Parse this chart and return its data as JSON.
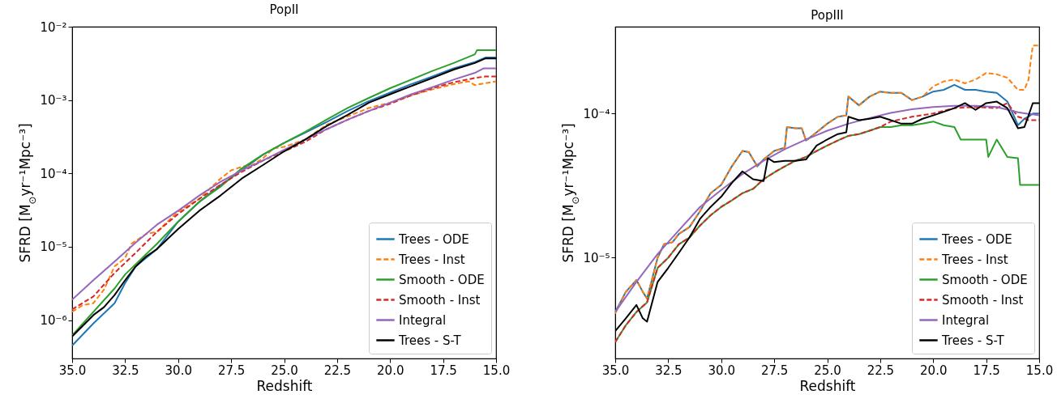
{
  "chart_data": [
    {
      "type": "line",
      "title": "PopII",
      "xlabel": "Redshift",
      "ylabel": "SFRD [M$_{⊙}$yr⁻¹Mpc⁻³]",
      "log": "y",
      "legend": "bottom right",
      "xlim": [
        35,
        15
      ],
      "xticks": [
        {
          "value": 35,
          "label": "35.0"
        },
        {
          "value": 32.5,
          "label": "32.5"
        },
        {
          "value": 30,
          "label": "30.0"
        },
        {
          "value": 27.5,
          "label": "27.5"
        },
        {
          "value": 25,
          "label": "25.0"
        },
        {
          "value": 22.5,
          "label": "22.5"
        },
        {
          "value": 20,
          "label": "20.0"
        },
        {
          "value": 17.5,
          "label": "17.5"
        },
        {
          "value": 15,
          "label": "15.0"
        }
      ],
      "ylim": [
        3e-07,
        0.01
      ],
      "yticks": [
        {
          "value": 1e-06,
          "label": "10⁻⁶"
        },
        {
          "value": 1e-05,
          "label": "10⁻⁵"
        },
        {
          "value": 0.0001,
          "label": "10⁻⁴"
        },
        {
          "value": 0.001,
          "label": "10⁻³"
        },
        {
          "value": 0.01,
          "label": "10⁻²"
        }
      ],
      "series": [
        {
          "name": "Trees - ODE",
          "color": "#1f77b4",
          "line_style": "solid",
          "x": [
            35,
            34,
            33,
            32.5,
            32,
            31,
            30,
            29,
            28,
            27,
            26,
            25,
            24,
            23,
            22,
            21,
            20,
            19,
            18,
            17,
            16,
            15.5,
            15
          ],
          "values": [
            4.5e-07,
            9e-07,
            1.7e-06,
            3.2e-06,
            5.4e-06,
            9.3e-06,
            2.2e-05,
            4.1e-05,
            6.9e-05,
            0.00011,
            0.00018,
            0.00026,
            0.00036,
            0.0005,
            0.00071,
            0.00097,
            0.00126,
            0.00165,
            0.0021,
            0.0027,
            0.0033,
            0.0038,
            0.0038
          ]
        },
        {
          "name": "Trees - Inst",
          "color": "#ff7f0e",
          "line_style": "dashed",
          "x": [
            35,
            34.5,
            34,
            33.5,
            33,
            32.5,
            32.2,
            31.5,
            31,
            30.5,
            30,
            29.5,
            29,
            28.5,
            28,
            27.5,
            27,
            26.5,
            26,
            25.5,
            25,
            24,
            23,
            22,
            21,
            20,
            19,
            18,
            17,
            16.3,
            16,
            15.5,
            15
          ],
          "values": [
            1.3e-06,
            1.6e-06,
            1.7e-06,
            2.6e-06,
            5.4e-06,
            7e-06,
            1.1e-05,
            1.5e-05,
            1.6e-05,
            2.2e-05,
            3e-05,
            3.7e-05,
            4.5e-05,
            6.2e-05,
            8.5e-05,
            0.00011,
            0.000123,
            0.00013,
            0.00016,
            0.00022,
            0.00023,
            0.00029,
            0.00046,
            0.0006,
            0.00078,
            0.00092,
            0.00116,
            0.0014,
            0.00165,
            0.0018,
            0.0016,
            0.0017,
            0.0018
          ]
        },
        {
          "name": "Smooth - ODE",
          "color": "#2ca02c",
          "line_style": "solid",
          "x": [
            35,
            33,
            32.5,
            31,
            30,
            29,
            28,
            27,
            26,
            25,
            24,
            23,
            22,
            21,
            20,
            19,
            18,
            17,
            16,
            15.9,
            15
          ],
          "values": [
            6.2e-07,
            2.7e-06,
            4.2e-06,
            1.1e-05,
            2.2e-05,
            4.1e-05,
            6.6e-05,
            0.000117,
            0.00018,
            0.00026,
            0.00037,
            0.00054,
            0.00078,
            0.00107,
            0.00145,
            0.0019,
            0.0025,
            0.0032,
            0.0042,
            0.0048,
            0.0048
          ]
        },
        {
          "name": "Smooth - Inst",
          "color": "#d62728",
          "line_style": "dashed",
          "x": [
            35,
            34,
            33,
            32,
            31,
            30,
            29,
            28,
            27,
            26,
            25,
            24,
            23,
            22,
            21,
            20,
            19,
            18,
            17,
            16,
            15.5,
            15
          ],
          "values": [
            1.4e-06,
            2.1e-06,
            4.4e-06,
            8.3e-06,
            1.6e-05,
            2.8e-05,
            4.5e-05,
            7e-05,
            0.000105,
            0.00015,
            0.0002,
            0.00027,
            0.0004,
            0.00054,
            0.00071,
            0.00089,
            0.00116,
            0.00145,
            0.00175,
            0.002,
            0.0021,
            0.0021
          ]
        },
        {
          "name": "Integral",
          "color": "#9467bd",
          "line_style": "solid",
          "x": [
            35,
            34,
            33,
            32,
            31,
            30,
            29,
            28,
            27,
            26,
            25,
            24,
            23,
            22,
            21,
            20,
            19,
            18,
            17,
            16,
            15.6,
            15
          ],
          "values": [
            1.9e-06,
            3.5e-06,
            6.3e-06,
            1.14e-05,
            2e-05,
            3.1e-05,
            5e-05,
            7.7e-05,
            0.00011,
            0.00015,
            0.00021,
            0.00029,
            0.0004,
            0.00054,
            0.00071,
            0.00092,
            0.0012,
            0.0015,
            0.0019,
            0.00235,
            0.0027,
            0.0027
          ]
        },
        {
          "name": "Trees - S-T",
          "color": "#000000",
          "line_style": "solid",
          "x": [
            35,
            34,
            33.5,
            33,
            32.5,
            32,
            31.5,
            31,
            30,
            29,
            28,
            27,
            26,
            25,
            24,
            23,
            22,
            21,
            20,
            19,
            18,
            17,
            16,
            15.5,
            15
          ],
          "values": [
            6e-07,
            1.17e-06,
            1.5e-06,
            2.2e-06,
            3.5e-06,
            5.4e-06,
            7.4e-06,
            9.3e-06,
            1.75e-05,
            3.1e-05,
            5e-05,
            8.5e-05,
            0.00013,
            0.0002,
            0.00029,
            0.00044,
            0.00063,
            0.00092,
            0.0012,
            0.00155,
            0.002,
            0.0026,
            0.0032,
            0.0037,
            0.0037
          ]
        }
      ]
    },
    {
      "type": "line",
      "title": "PopIII",
      "xlabel": "Redshift",
      "ylabel": "SFRD [M$_{⊙}$yr⁻¹Mpc⁻³]",
      "log": "y",
      "legend": "bottom right",
      "xlim": [
        35,
        15
      ],
      "xticks": [
        {
          "value": 35,
          "label": "35.0"
        },
        {
          "value": 32.5,
          "label": "32.5"
        },
        {
          "value": 30,
          "label": "30.0"
        },
        {
          "value": 27.5,
          "label": "27.5"
        },
        {
          "value": 25,
          "label": "25.0"
        },
        {
          "value": 22.5,
          "label": "22.5"
        },
        {
          "value": 20,
          "label": "20.0"
        },
        {
          "value": 17.5,
          "label": "17.5"
        },
        {
          "value": 15,
          "label": "15.0"
        }
      ],
      "ylim": [
        2e-06,
        0.0004
      ],
      "yticks": [
        {
          "value": 1e-05,
          "label": "10⁻⁵"
        },
        {
          "value": 0.0001,
          "label": "10⁻⁴"
        }
      ],
      "series": [
        {
          "name": "Trees - ODE",
          "color": "#1f77b4",
          "line_style": "solid",
          "x": [
            35,
            34.5,
            34,
            33.7,
            33.5,
            33,
            32.7,
            32.3,
            32,
            31.5,
            31,
            30.5,
            30,
            29.5,
            29,
            28.7,
            28.3,
            28,
            27.5,
            27,
            26.9,
            26.5,
            26.2,
            26,
            25.5,
            25,
            24.5,
            24.1,
            24,
            23.5,
            23,
            22.5,
            22,
            21.5,
            21,
            20.5,
            20,
            19.5,
            19,
            18.5,
            18,
            17.5,
            17,
            16.5,
            16,
            15.7,
            15.5,
            15.3,
            15
          ],
          "values": [
            4.2e-06,
            5.8e-06,
            7e-06,
            5.8e-06,
            5.2e-06,
            1e-05,
            1.24e-05,
            1.28e-05,
            1.46e-05,
            1.63e-05,
            2.1e-05,
            2.8e-05,
            3.2e-05,
            4.3e-05,
            5.5e-05,
            5.4e-05,
            4.3e-05,
            4.8e-05,
            5.5e-05,
            5.8e-05,
            8.05e-05,
            7.9e-05,
            7.9e-05,
            6.5e-05,
            7.4e-05,
            8.5e-05,
            9.5e-05,
            9.7e-05,
            0.000131,
            0.000114,
            0.000131,
            0.000142,
            0.000139,
            0.000139,
            0.000124,
            0.000131,
            0.000142,
            0.000146,
            0.000158,
            0.000146,
            0.000146,
            0.000142,
            0.000139,
            0.000121,
            8.3e-05,
            9.2e-05,
            9.5e-05,
            0.0001,
            0.0001
          ]
        },
        {
          "name": "Trees - Inst",
          "color": "#ff7f0e",
          "line_style": "dashed",
          "x": [
            35,
            34.5,
            34,
            33.7,
            33.5,
            33,
            32.7,
            32.3,
            32,
            31.5,
            31,
            30.5,
            30,
            29.5,
            29,
            28.7,
            28.3,
            28,
            27.5,
            27,
            26.9,
            26.5,
            26.2,
            26,
            25.5,
            25,
            24.5,
            24.1,
            24,
            23.5,
            23,
            22.5,
            22,
            21.5,
            21,
            20.5,
            20,
            19.5,
            19,
            18.5,
            18,
            17.5,
            17,
            16.5,
            16,
            15.7,
            15.5,
            15.4,
            15.3,
            15
          ],
          "values": [
            4.1e-06,
            5.8e-06,
            7e-06,
            5.8e-06,
            5.2e-06,
            1e-05,
            1.24e-05,
            1.28e-05,
            1.46e-05,
            1.63e-05,
            2.1e-05,
            2.8e-05,
            3.2e-05,
            4.3e-05,
            5.5e-05,
            5.4e-05,
            4.3e-05,
            4.8e-05,
            5.5e-05,
            5.8e-05,
            8.05e-05,
            7.9e-05,
            7.9e-05,
            6.5e-05,
            7.4e-05,
            8.5e-05,
            9.5e-05,
            9.7e-05,
            0.000131,
            0.000114,
            0.000131,
            0.000142,
            0.000139,
            0.000139,
            0.000124,
            0.000131,
            0.000154,
            0.000167,
            0.000172,
            0.000162,
            0.000172,
            0.000191,
            0.000187,
            0.000177,
            0.000146,
            0.000146,
            0.000172,
            0.00023,
            0.000296,
            0.000296
          ]
        },
        {
          "name": "Smooth - ODE",
          "color": "#2ca02c",
          "line_style": "solid",
          "x": [
            35,
            34.5,
            34,
            33.5,
            33,
            32.5,
            32,
            31.5,
            31,
            30.5,
            30,
            29.5,
            29,
            28.5,
            28,
            27.5,
            27,
            26.5,
            26,
            25.5,
            25,
            24.5,
            24,
            23.5,
            23,
            22.5,
            22,
            21.5,
            21,
            20.5,
            20,
            19.5,
            19,
            18.7,
            18,
            17.5,
            17.4,
            17,
            16.5,
            16,
            15.9,
            15
          ],
          "values": [
            2.6e-06,
            3.4e-06,
            4.2e-06,
            4.9e-06,
            8.5e-06,
            1e-05,
            1.24e-05,
            1.38e-05,
            1.67e-05,
            1.97e-05,
            2.25e-05,
            2.5e-05,
            2.8e-05,
            3e-05,
            3.5e-05,
            3.9e-05,
            4.3e-05,
            4.7e-05,
            5e-05,
            5.5e-05,
            6e-05,
            6.5e-05,
            7e-05,
            7.2e-05,
            7.6e-05,
            8.05e-05,
            8.05e-05,
            8.3e-05,
            8.3e-05,
            8.5e-05,
            8.8e-05,
            8.3e-05,
            8.05e-05,
            6.6e-05,
            6.6e-05,
            6.6e-05,
            5e-05,
            6.6e-05,
            5e-05,
            4.9e-05,
            3.2e-05,
            3.2e-05
          ]
        },
        {
          "name": "Smooth - Inst",
          "color": "#d62728",
          "line_style": "dashed",
          "x": [
            35,
            34.5,
            34,
            33.5,
            33,
            32.5,
            32,
            31.5,
            31,
            30.5,
            30,
            29.5,
            29,
            28.5,
            28,
            27.5,
            27,
            26.5,
            26,
            25.5,
            25,
            24.5,
            24,
            23.5,
            23,
            22.5,
            22,
            21,
            20,
            19,
            18,
            17,
            16.5,
            16,
            15.5,
            15
          ],
          "values": [
            2.6e-06,
            3.4e-06,
            4.2e-06,
            4.9e-06,
            8.5e-06,
            1e-05,
            1.24e-05,
            1.38e-05,
            1.67e-05,
            1.97e-05,
            2.25e-05,
            2.5e-05,
            2.8e-05,
            3e-05,
            3.5e-05,
            3.9e-05,
            4.3e-05,
            4.7e-05,
            5e-05,
            5.5e-05,
            6e-05,
            6.5e-05,
            7e-05,
            7.2e-05,
            7.6e-05,
            8.05e-05,
            8.8e-05,
            9.5e-05,
            0.0001,
            0.000109,
            0.000111,
            0.000109,
            0.000118,
            9.5e-05,
            9e-05,
            9e-05
          ]
        },
        {
          "name": "Integral",
          "color": "#9467bd",
          "line_style": "solid",
          "x": [
            35,
            34,
            33,
            32,
            31,
            30,
            29,
            28,
            27,
            26,
            25,
            24,
            23,
            22,
            21,
            20,
            19,
            18,
            17,
            16,
            15
          ],
          "values": [
            4.2e-06,
            6.8e-06,
            1.06e-05,
            1.55e-05,
            2.25e-05,
            2.95e-05,
            3.8e-05,
            4.7e-05,
            5.65e-05,
            6.6e-05,
            7.6e-05,
            8.5e-05,
            9.3e-05,
            0.000101,
            0.000107,
            0.000111,
            0.000113,
            0.000113,
            0.000111,
            0.000102,
            9.7e-05
          ]
        },
        {
          "name": "Trees - S-T",
          "color": "#000000",
          "line_style": "solid",
          "x": [
            35,
            34.5,
            34,
            33.7,
            33.5,
            33,
            32.5,
            32,
            31.5,
            31,
            30.5,
            30,
            29.5,
            29,
            28.5,
            28,
            27.8,
            27.5,
            27,
            26.5,
            26,
            25.5,
            25,
            24.5,
            24.1,
            24,
            23.5,
            23,
            22.5,
            22,
            21.5,
            21,
            20.5,
            20,
            19,
            18.5,
            18,
            17.5,
            17,
            16.5,
            16,
            15.7,
            15.5,
            15.3,
            15
          ],
          "values": [
            3.1e-06,
            3.8e-06,
            4.7e-06,
            3.8e-06,
            3.6e-06,
            6.8e-06,
            8.5e-06,
            1.08e-05,
            1.38e-05,
            1.86e-05,
            2.25e-05,
            2.65e-05,
            3.3e-05,
            3.97e-05,
            3.5e-05,
            3.4e-05,
            4.9e-05,
            4.6e-05,
            4.7e-05,
            4.7e-05,
            4.8e-05,
            6e-05,
            6.6e-05,
            7.2e-05,
            7.4e-05,
            9.5e-05,
            9e-05,
            9.2e-05,
            9.5e-05,
            9e-05,
            8.5e-05,
            8.5e-05,
            9.2e-05,
            9.7e-05,
            0.000109,
            0.000118,
            0.000106,
            0.000118,
            0.000121,
            0.000109,
            7.9e-05,
            8.05e-05,
            9.7e-05,
            0.000118,
            0.000118
          ]
        }
      ]
    }
  ]
}
